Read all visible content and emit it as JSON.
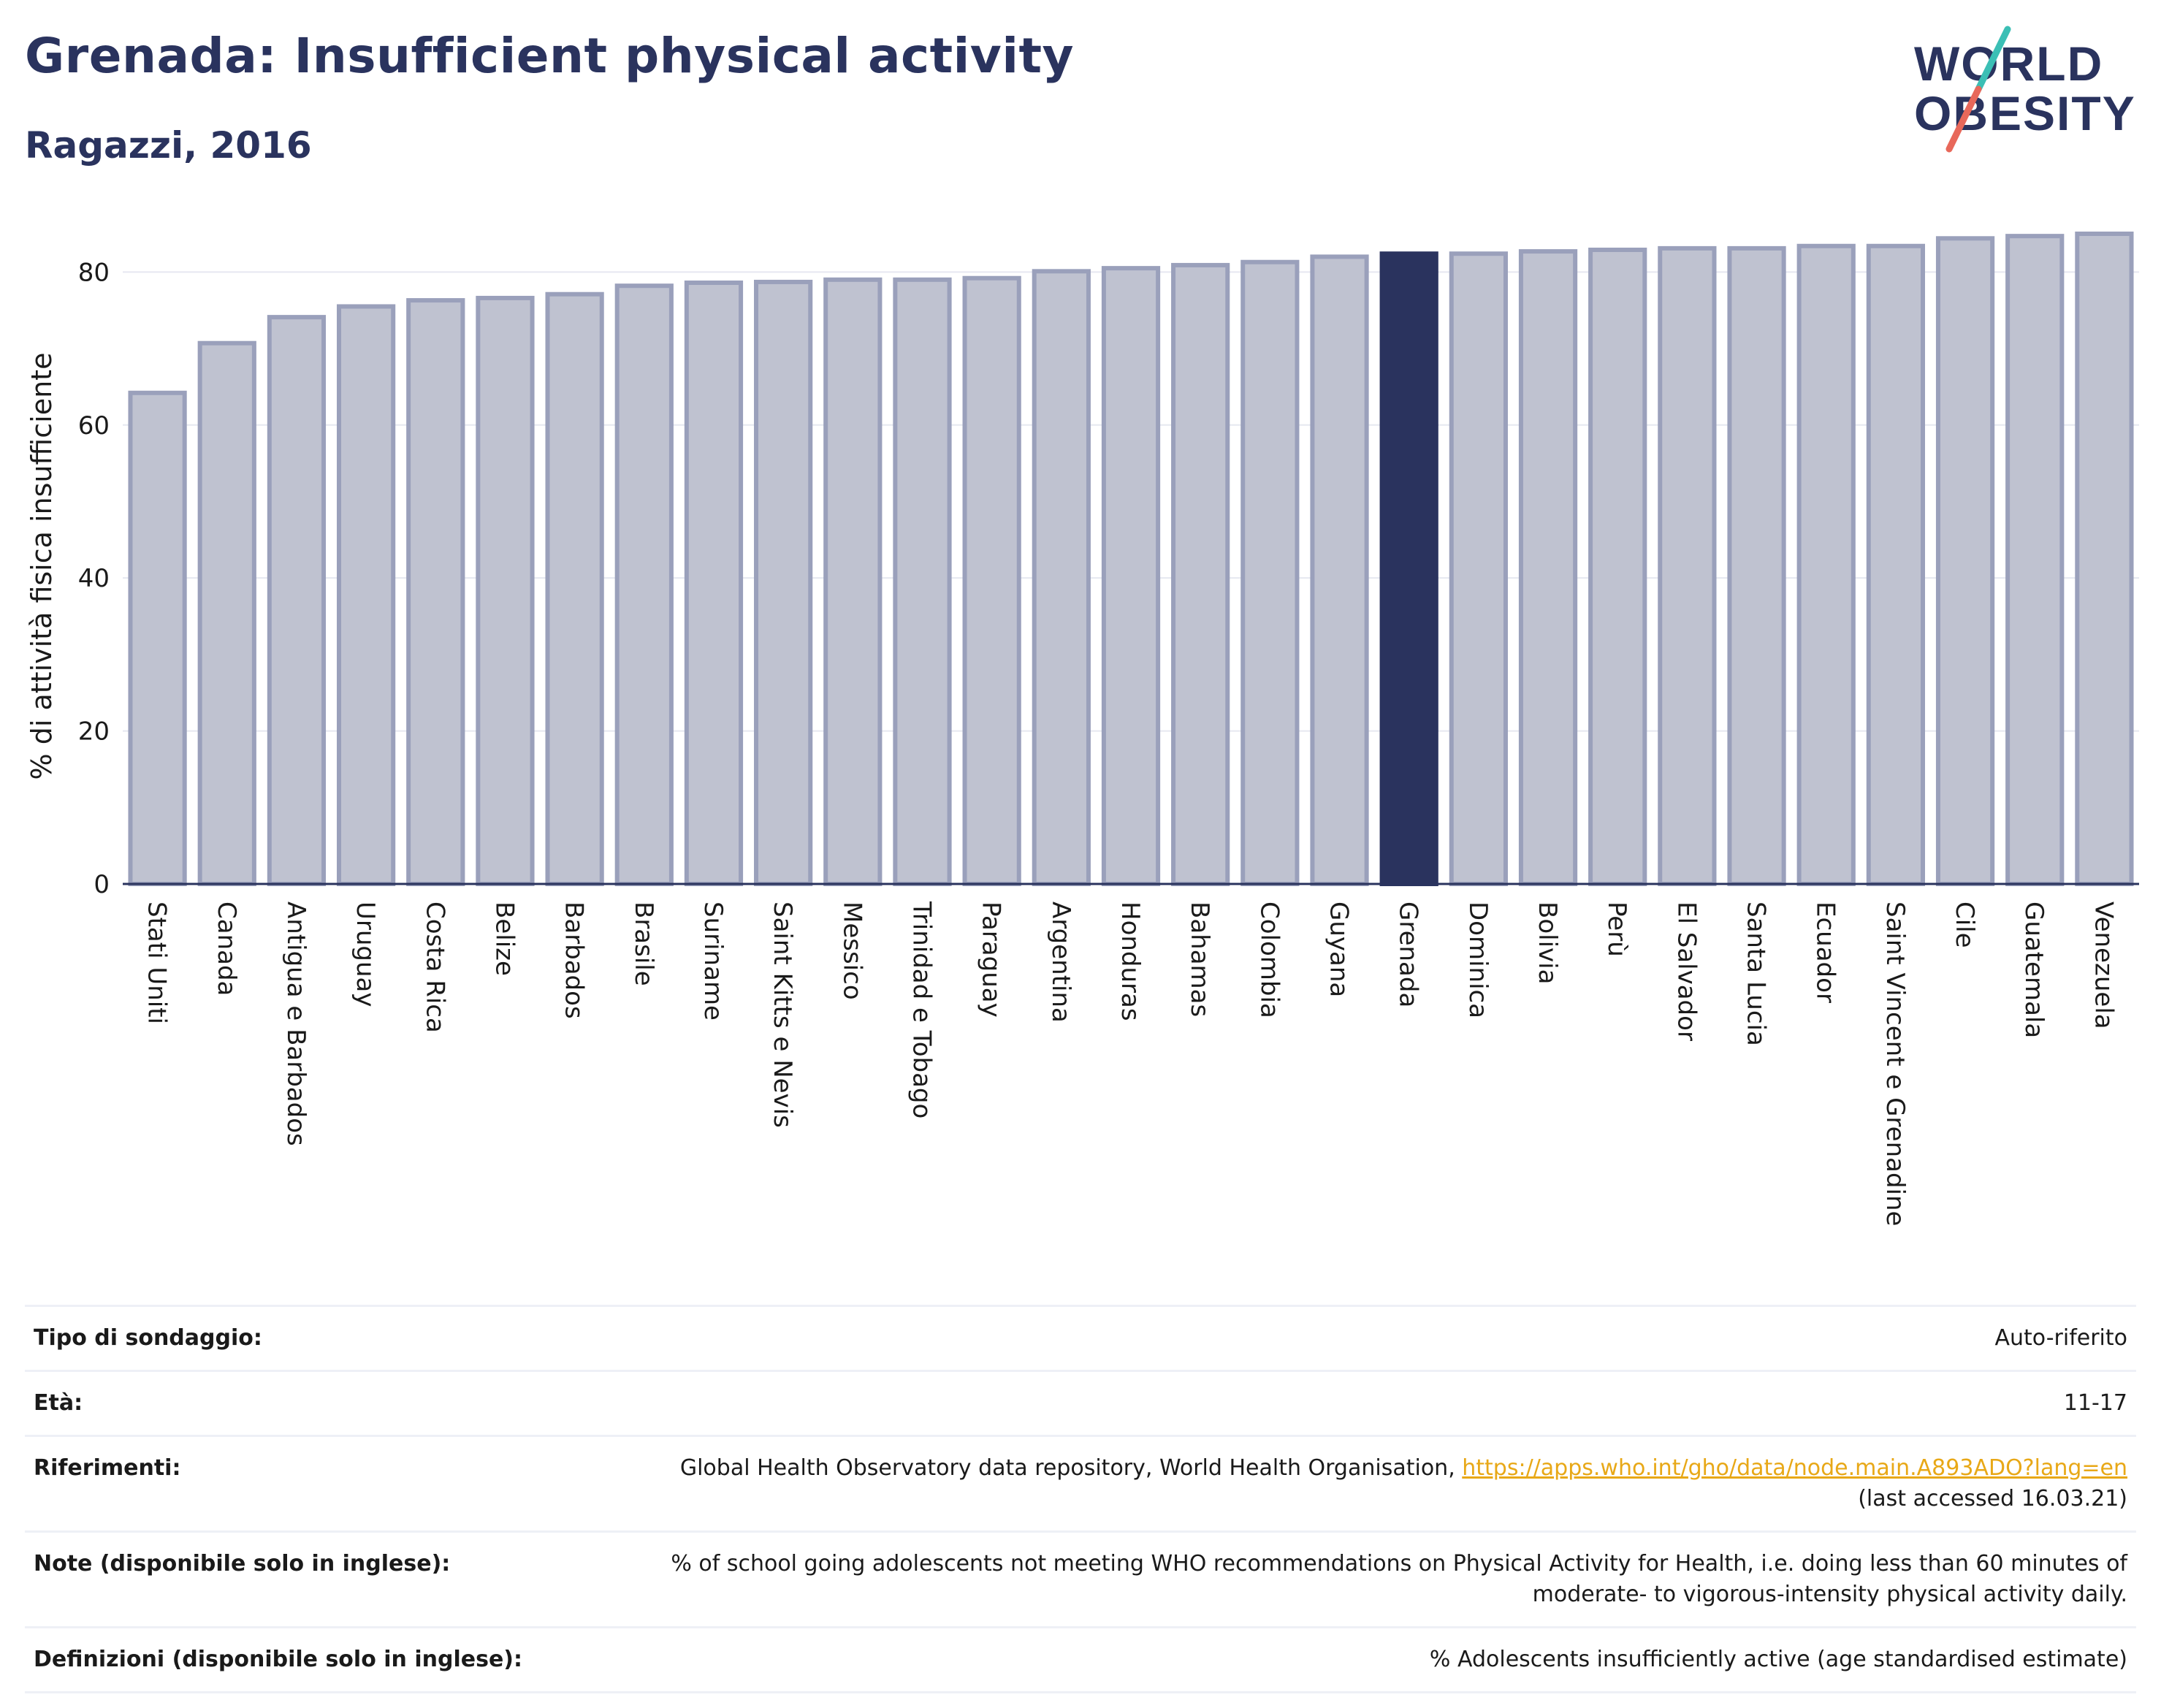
{
  "header": {
    "title": "Grenada: Insufficient physical activity",
    "subtitle": "Ragazzi, 2016"
  },
  "logo": {
    "line1": "WORLD",
    "line2": "OBESITY",
    "text_color": "#2a335e",
    "slash_top_color": "#3bbfb5",
    "slash_bottom_color": "#e8685a"
  },
  "colors": {
    "bar_default": "#bfc2d0",
    "bar_default_edge": "#9aa0bb",
    "bar_highlight": "#2a335e",
    "axis": "#2a335e",
    "grid": "#e6e8f0"
  },
  "chart_data": {
    "type": "bar",
    "categories": [
      "Stati Uniti",
      "Canada",
      "Antigua e Barbados",
      "Uruguay",
      "Costa Rica",
      "Belize",
      "Barbados",
      "Brasile",
      "Suriname",
      "Saint Kitts e Nevis",
      "Messico",
      "Trinidad e Tobago",
      "Paraguay",
      "Argentina",
      "Honduras",
      "Bahamas",
      "Colombia",
      "Guyana",
      "Grenada",
      "Dominica",
      "Bolivia",
      "Perù",
      "El Salvador",
      "Santa Lucia",
      "Ecuador",
      "Saint Vincent e Grenadine",
      "Cile",
      "Guatemala",
      "Venezuela"
    ],
    "values": [
      64.2,
      70.7,
      74.1,
      75.5,
      76.3,
      76.6,
      77.1,
      78.2,
      78.6,
      78.7,
      79.0,
      79.0,
      79.2,
      80.1,
      80.5,
      80.9,
      81.3,
      82.0,
      82.4,
      82.4,
      82.7,
      82.9,
      83.1,
      83.1,
      83.4,
      83.4,
      84.4,
      84.7,
      85.0
    ],
    "highlight": "Grenada",
    "title": "",
    "xlabel": "",
    "ylabel": "% di attività fisica insufficiente",
    "ylim": [
      0,
      85
    ],
    "yticks": [
      0,
      20,
      40,
      60,
      80
    ],
    "grid": true,
    "legend": "none"
  },
  "info_table": {
    "rows": [
      {
        "label": "Tipo di sondaggio:",
        "value": "Auto-riferito"
      },
      {
        "label": "Età:",
        "value": "11-17"
      },
      {
        "label": "Riferimenti:",
        "value": "Global Health Observatory data repository, World Health Organisation, ",
        "link": "https://apps.who.int/gho/data/node.main.A893ADO?lang=en",
        "extra": "(last accessed 16.03.21)"
      },
      {
        "label": "Note (disponibile solo in inglese):",
        "value": "% of school going adolescents not meeting WHO recommendations on Physical Activity for Health, i.e. doing less than 60 minutes of moderate- to vigorous-intensity physical activity daily."
      },
      {
        "label": "Definizioni (disponibile solo in inglese):",
        "value": "% Adolescents insufficiently active (age standardised estimate)"
      }
    ]
  }
}
